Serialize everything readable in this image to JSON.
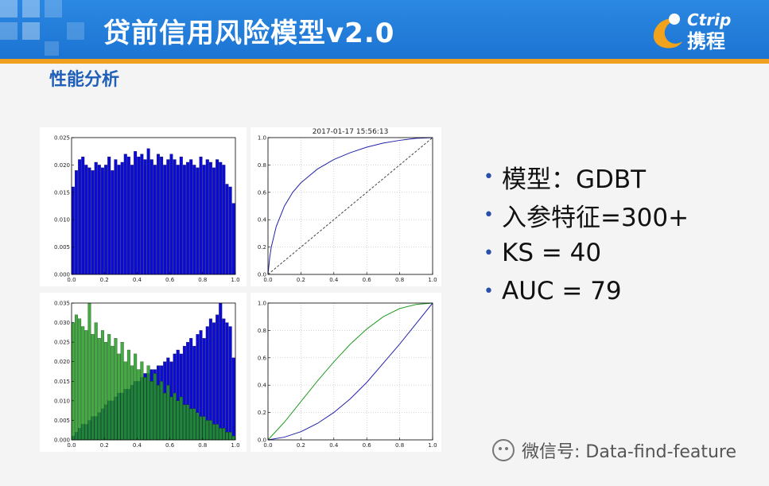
{
  "slide": {
    "title": "贷前信用风险模型v2.0",
    "subtitle": "性能分析",
    "logo": {
      "brand": "Ctrip",
      "chinese": "携程",
      "icon": "dolphin-logo"
    }
  },
  "bullets": [
    "模型：GDBT",
    "入参特征=300+",
    "KS = 40",
    "AUC = 79"
  ],
  "watermark": "微信号: Data-find-feature",
  "colors": {
    "header": "#1c74d2",
    "accent": "#f0a01e",
    "blue_series": "#0b0bd8",
    "green_series": "#219c21"
  },
  "chart_data": [
    {
      "type": "bar",
      "panel": "top-left",
      "xlim": [
        0,
        1
      ],
      "ylim": [
        0,
        0.025
      ],
      "xticks": [
        "0.0",
        "0.2",
        "0.4",
        "0.6",
        "0.8",
        "1.0"
      ],
      "yticks": [
        "0.000",
        "0.005",
        "0.010",
        "0.015",
        "0.020",
        "0.025"
      ],
      "series": [
        {
          "color": "#0b0bd8",
          "values": [
            0.016,
            0.019,
            0.021,
            0.0215,
            0.02,
            0.0195,
            0.019,
            0.0205,
            0.02,
            0.0195,
            0.02,
            0.0215,
            0.019,
            0.021,
            0.02,
            0.0205,
            0.022,
            0.0215,
            0.02,
            0.0225,
            0.0215,
            0.022,
            0.021,
            0.023,
            0.021,
            0.02,
            0.022,
            0.0215,
            0.02,
            0.021,
            0.022,
            0.021,
            0.02,
            0.0215,
            0.02,
            0.0205,
            0.021,
            0.02,
            0.0195,
            0.0215,
            0.02,
            0.021,
            0.0205,
            0.0195,
            0.021,
            0.0205,
            0.02,
            0.0165,
            0.016,
            0.013
          ]
        }
      ]
    },
    {
      "type": "line",
      "panel": "top-right",
      "title": "2017-01-17 15:56:13",
      "xlim": [
        0,
        1
      ],
      "ylim": [
        0,
        1
      ],
      "xticks": [
        "0.0",
        "0.2",
        "0.4",
        "0.6",
        "0.8",
        "1.0"
      ],
      "yticks": [
        "0.0",
        "0.2",
        "0.4",
        "0.6",
        "0.8",
        "1.0"
      ],
      "series": [
        {
          "color": "#2222aa",
          "x": [
            0,
            0.01,
            0.02,
            0.05,
            0.1,
            0.15,
            0.2,
            0.3,
            0.4,
            0.5,
            0.6,
            0.7,
            0.8,
            0.9,
            1.0
          ],
          "y": [
            0,
            0.12,
            0.2,
            0.35,
            0.5,
            0.6,
            0.67,
            0.77,
            0.84,
            0.89,
            0.93,
            0.96,
            0.98,
            0.995,
            1.0
          ]
        },
        {
          "color": "#444444",
          "dashed": true,
          "x": [
            0,
            1
          ],
          "y": [
            0,
            1
          ]
        }
      ]
    },
    {
      "type": "bar",
      "panel": "bottom-left",
      "xlim": [
        0,
        1
      ],
      "ylim": [
        0,
        0.035
      ],
      "xticks": [
        "0.0",
        "0.2",
        "0.4",
        "0.6",
        "0.8",
        "1.0"
      ],
      "yticks": [
        "0.000",
        "0.005",
        "0.010",
        "0.015",
        "0.020",
        "0.025",
        "0.030",
        "0.035"
      ],
      "series": [
        {
          "color": "#0b0bd8",
          "values": [
            0.001,
            0.002,
            0.003,
            0.004,
            0.004,
            0.005,
            0.006,
            0.006,
            0.007,
            0.008,
            0.009,
            0.01,
            0.01,
            0.011,
            0.012,
            0.012,
            0.013,
            0.013,
            0.014,
            0.015,
            0.015,
            0.016,
            0.017,
            0.017,
            0.018,
            0.018,
            0.019,
            0.019,
            0.02,
            0.021,
            0.02,
            0.022,
            0.023,
            0.022,
            0.024,
            0.025,
            0.026,
            0.024,
            0.027,
            0.028,
            0.026,
            0.029,
            0.031,
            0.03,
            0.032,
            0.035,
            0.031,
            0.03,
            0.029,
            0.021
          ]
        },
        {
          "color": "#219c21",
          "values": [
            0.03,
            0.032,
            0.031,
            0.029,
            0.028,
            0.035,
            0.027,
            0.03,
            0.026,
            0.028,
            0.025,
            0.027,
            0.024,
            0.026,
            0.022,
            0.025,
            0.02,
            0.023,
            0.019,
            0.022,
            0.018,
            0.02,
            0.016,
            0.019,
            0.015,
            0.017,
            0.014,
            0.015,
            0.012,
            0.014,
            0.011,
            0.012,
            0.01,
            0.011,
            0.009,
            0.009,
            0.008,
            0.008,
            0.007,
            0.006,
            0.006,
            0.005,
            0.005,
            0.004,
            0.004,
            0.003,
            0.003,
            0.002,
            0.002,
            0.001
          ]
        }
      ]
    },
    {
      "type": "line",
      "panel": "bottom-right",
      "xlim": [
        0,
        1
      ],
      "ylim": [
        0,
        1
      ],
      "xticks": [
        "0.0",
        "0.2",
        "0.4",
        "0.6",
        "0.8",
        "1.0"
      ],
      "yticks": [
        "0.0",
        "0.2",
        "0.4",
        "0.6",
        "0.8",
        "1.0"
      ],
      "series": [
        {
          "color": "#219c21",
          "x": [
            0,
            0.1,
            0.2,
            0.3,
            0.4,
            0.5,
            0.6,
            0.7,
            0.8,
            0.9,
            1.0
          ],
          "y": [
            0,
            0.13,
            0.28,
            0.43,
            0.57,
            0.7,
            0.81,
            0.9,
            0.96,
            0.99,
            1.0
          ]
        },
        {
          "color": "#2222aa",
          "x": [
            0,
            0.1,
            0.2,
            0.3,
            0.4,
            0.5,
            0.6,
            0.7,
            0.8,
            0.9,
            1.0
          ],
          "y": [
            0,
            0.02,
            0.06,
            0.12,
            0.2,
            0.3,
            0.42,
            0.56,
            0.7,
            0.85,
            1.0
          ]
        }
      ]
    }
  ]
}
